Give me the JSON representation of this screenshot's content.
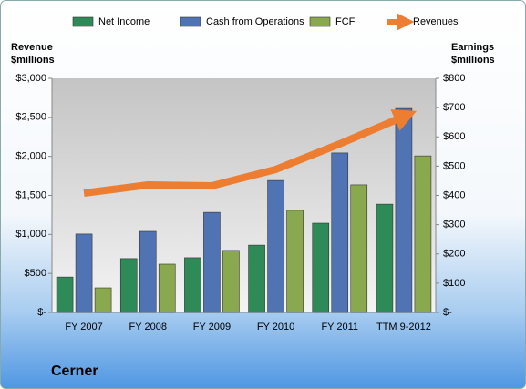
{
  "chart_data": {
    "type": "bar_line",
    "annotation": "Cerner",
    "ylabel": [
      "Revenue",
      "$millions"
    ],
    "y2label": [
      "Earnings",
      "$millions"
    ],
    "categories": [
      "FY 2007",
      "FY 2008",
      "FY 2009",
      "FY 2010",
      "FY 2011",
      "TTM 9-2012"
    ],
    "series": [
      {
        "name": "Net Income",
        "color": "#2e8b57",
        "kind": "bar",
        "axis": "y2",
        "values": [
          121,
          184,
          187,
          230,
          305,
          370
        ]
      },
      {
        "name": "Cash from Operations",
        "color": "#4f73b3",
        "kind": "bar",
        "axis": "y2",
        "values": [
          268,
          277,
          342,
          451,
          545,
          697
        ]
      },
      {
        "name": "FCF",
        "color": "#8aa84e",
        "kind": "bar",
        "axis": "y2",
        "values": [
          84,
          165,
          212,
          349,
          436,
          535
        ]
      },
      {
        "name": "Revenues",
        "color": "#ed7d31",
        "kind": "line",
        "axis": "y",
        "values": [
          1529,
          1634,
          1623,
          1833,
          2161,
          2511
        ]
      }
    ],
    "ylim": [
      0,
      3000
    ],
    "yticks": [
      {
        "value": 0,
        "label": "$-"
      },
      {
        "value": 500,
        "label": "$500"
      },
      {
        "value": 1000,
        "label": "$1,000"
      },
      {
        "value": 1500,
        "label": "$1,500"
      },
      {
        "value": 2000,
        "label": "$2,000"
      },
      {
        "value": 2500,
        "label": "$2,500"
      },
      {
        "value": 3000,
        "label": "$3,000"
      }
    ],
    "y2lim": [
      0,
      800
    ],
    "y2ticks": [
      {
        "value": 0,
        "label": "$-"
      },
      {
        "value": 100,
        "label": "$100"
      },
      {
        "value": 200,
        "label": "$200"
      },
      {
        "value": 300,
        "label": "$300"
      },
      {
        "value": 400,
        "label": "$400"
      },
      {
        "value": 500,
        "label": "$500"
      },
      {
        "value": 600,
        "label": "$600"
      },
      {
        "value": 700,
        "label": "$700"
      },
      {
        "value": 800,
        "label": "$800"
      }
    ],
    "grid": false,
    "legend": "top"
  }
}
